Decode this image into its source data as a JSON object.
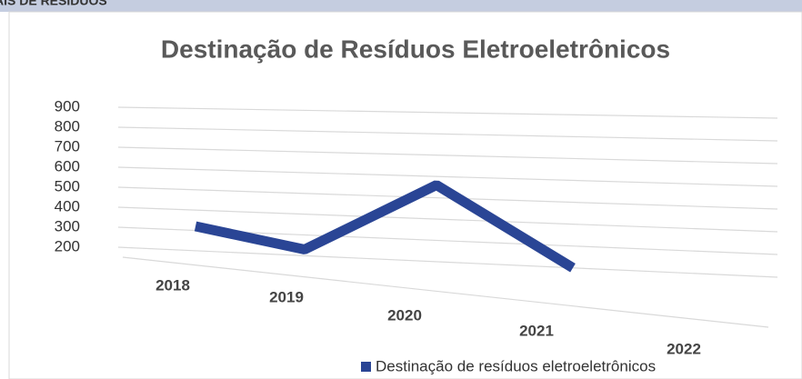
{
  "header": "AIS DE RESÍDUOS",
  "chart_data": {
    "type": "line3d",
    "title": "Destinação de Resíduos Eletroeletrônicos",
    "categories": [
      "2018",
      "2019",
      "2020",
      "2021",
      "2022"
    ],
    "series": [
      {
        "name": "Destinação de resíduos eletroeletrônicos",
        "color": "#2a4595",
        "values": [
          320,
          230,
          560,
          200,
          null
        ]
      }
    ],
    "ylim": [
      200,
      900
    ],
    "yticks": [
      200,
      300,
      400,
      500,
      600,
      700,
      800,
      900
    ],
    "grid": true,
    "legend": "bottom"
  }
}
